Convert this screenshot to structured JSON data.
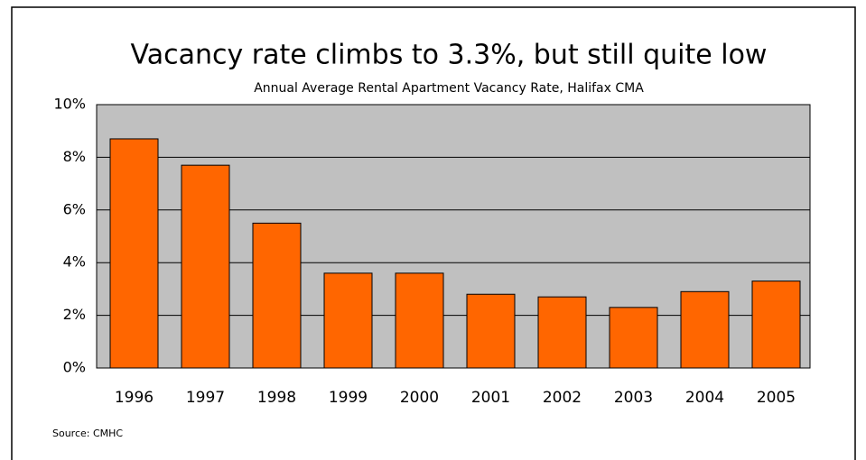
{
  "chart_data": {
    "type": "bar",
    "title": "Vacancy rate climbs to 3.3%, but still quite low",
    "subtitle": "Annual Average Rental Apartment Vacancy Rate, Halifax CMA",
    "source": "Source: CMHC",
    "categories": [
      "1996",
      "1997",
      "1998",
      "1999",
      "2000",
      "2001",
      "2002",
      "2003",
      "2004",
      "2005"
    ],
    "values": [
      8.7,
      7.7,
      5.5,
      3.6,
      3.6,
      2.8,
      2.7,
      2.3,
      2.9,
      3.3
    ],
    "color": "#ff6600",
    "ylim": [
      0,
      10
    ],
    "yticks": [
      {
        "value": 0,
        "label": "0%"
      },
      {
        "value": 2,
        "label": "2%"
      },
      {
        "value": 4,
        "label": "4%"
      },
      {
        "value": 6,
        "label": "6%"
      },
      {
        "value": 8,
        "label": "8%"
      },
      {
        "value": 10,
        "label": "10%"
      }
    ],
    "grid": true
  }
}
